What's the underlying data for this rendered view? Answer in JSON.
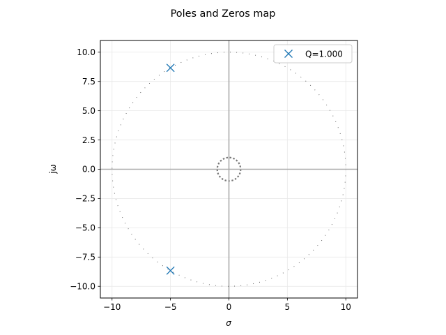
{
  "chart_data": {
    "type": "scatter",
    "title": "Poles and Zeros map",
    "xlabel": "σ",
    "ylabel": "jω",
    "xlim": [
      -11,
      11
    ],
    "ylim": [
      -11,
      11
    ],
    "xticks": [
      -10,
      -5,
      0,
      5,
      10
    ],
    "xtick_labels": [
      "−10",
      "−5",
      "0",
      "5",
      "10"
    ],
    "yticks": [
      -10,
      -7.5,
      -5,
      -2.5,
      0,
      2.5,
      5,
      7.5,
      10
    ],
    "ytick_labels": [
      "−10.0",
      "−7.5",
      "−5.0",
      "−2.5",
      "0.0",
      "2.5",
      "5.0",
      "7.5",
      "10.0"
    ],
    "grid": true,
    "legend": {
      "position": "top-right",
      "entries": [
        "Q=1.000"
      ]
    },
    "series": [
      {
        "name": "Q=1.000",
        "marker": "x",
        "color": "#1f77b4",
        "points": [
          {
            "x": -5,
            "y": 8.66
          },
          {
            "x": -5,
            "y": -8.66
          }
        ]
      }
    ],
    "reference_circles": [
      {
        "radius": 10,
        "style": "dotted-fine",
        "color": "#555555"
      },
      {
        "radius": 1,
        "style": "dotted-bold",
        "color": "#777777"
      }
    ],
    "axis_lines_color": "#aaaaaa"
  }
}
